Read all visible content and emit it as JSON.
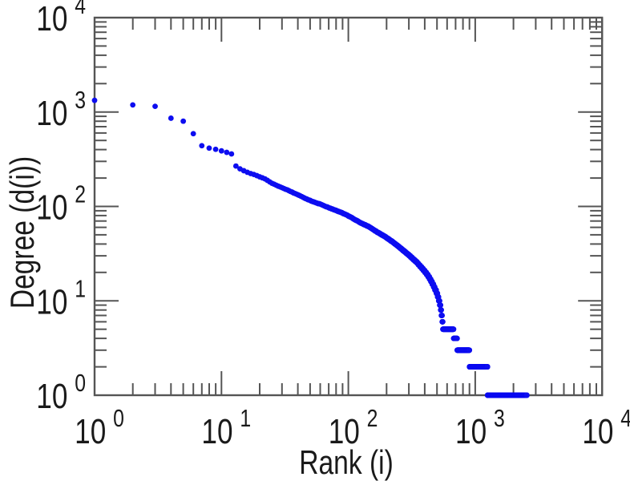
{
  "chart_data": {
    "type": "scatter",
    "title": "",
    "xlabel": "Rank (i)",
    "ylabel": "Degree (d(i))",
    "xscale": "log",
    "yscale": "log",
    "xlim": [
      1,
      10000
    ],
    "ylim": [
      1,
      10000
    ],
    "x_tick_exponents": [
      0,
      1,
      2,
      3,
      4
    ],
    "y_tick_exponents": [
      0,
      1,
      2,
      3,
      4
    ],
    "tick_base": "10",
    "minor_tick_multiples": [
      2,
      3,
      4,
      5,
      6,
      7,
      8,
      9
    ],
    "grid": false,
    "legend": null,
    "background": "#ffffff",
    "axis_color": "#555555",
    "text_color": "#1a1a1a",
    "marker": {
      "shape": "circle",
      "color": "#0d0df0",
      "radius_px": 3.4
    },
    "max_rank": 2550,
    "estimation_note": "degree-vs-rank curve read off the plot; degrees are integers, values between anchors follow piecewise log-log interpolation",
    "rank_degree_anchors": [
      [
        1,
        1330
      ],
      [
        2,
        1190
      ],
      [
        3,
        1150
      ],
      [
        4,
        860
      ],
      [
        5,
        800
      ],
      [
        6,
        590
      ],
      [
        7,
        440
      ],
      [
        8,
        415
      ],
      [
        9,
        403
      ],
      [
        10,
        388
      ],
      [
        11,
        374
      ],
      [
        12,
        360
      ],
      [
        13,
        268
      ],
      [
        14,
        250
      ],
      [
        16,
        230
      ],
      [
        19,
        212
      ],
      [
        22,
        196
      ],
      [
        25,
        176
      ],
      [
        29,
        161
      ],
      [
        34,
        147
      ],
      [
        39,
        135
      ],
      [
        45,
        123
      ],
      [
        52,
        113
      ],
      [
        61,
        105
      ],
      [
        70,
        97
      ],
      [
        81,
        90
      ],
      [
        94,
        83
      ],
      [
        108,
        75
      ],
      [
        125,
        67
      ],
      [
        145,
        61
      ],
      [
        167,
        54
      ],
      [
        194,
        48
      ],
      [
        224,
        42
      ],
      [
        259,
        36
      ],
      [
        300,
        30.5
      ],
      [
        347,
        25.5
      ],
      [
        401,
        20.5
      ],
      [
        431,
        18
      ],
      [
        464,
        15
      ],
      [
        500,
        12
      ],
      [
        520,
        10
      ],
      [
        535,
        8.3
      ],
      [
        545,
        7
      ],
      [
        552,
        5.9
      ],
      [
        556,
        5.45
      ],
      [
        675,
        4.5
      ],
      [
        720,
        3.5
      ],
      [
        900,
        2.5
      ],
      [
        1250,
        1.5
      ],
      [
        2550,
        1
      ]
    ]
  }
}
